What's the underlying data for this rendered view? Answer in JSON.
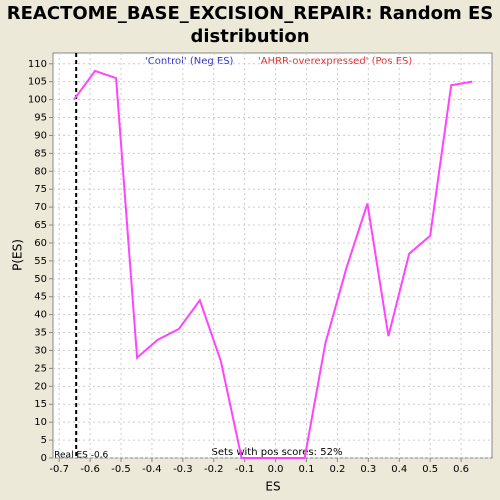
{
  "chart_data": {
    "type": "line",
    "title": "REACTOME_BASE_EXCISION_REPAIR: Random ES distribution",
    "xlabel": "ES",
    "ylabel": "P(ES)",
    "legend": [
      "'Control' (Neg ES)",
      "'AHRR-overexpressed' (Pos ES)"
    ],
    "legend_colors": [
      "#3333cc",
      "#dd3333"
    ],
    "annotation": "Sets with pos scores: 52%",
    "real_es": {
      "label": "Real ES -0.6",
      "x": -0.645
    },
    "x": [
      -0.652,
      -0.584,
      -0.516,
      -0.448,
      -0.381,
      -0.313,
      -0.245,
      -0.177,
      -0.11,
      -0.042,
      0.026,
      0.094,
      0.161,
      0.229,
      0.297,
      0.365,
      0.432,
      0.5,
      0.568,
      0.636
    ],
    "series": [
      {
        "name": "P(ES)",
        "color": "#ff44ff",
        "values": [
          100,
          108,
          106,
          28,
          33,
          36,
          44,
          27,
          0,
          0,
          0,
          0,
          32,
          53,
          71,
          34,
          57,
          62,
          104,
          105
        ]
      }
    ],
    "xlim": [
      -0.72,
      0.7
    ],
    "ylim": [
      0,
      113
    ],
    "xticks": [
      -0.7,
      -0.6,
      -0.5,
      -0.4,
      -0.3,
      -0.2,
      -0.1,
      {
        "value": 0,
        "label": "0.0"
      },
      0.1,
      0.2,
      0.3,
      0.4,
      0.5,
      0.6
    ],
    "yticks": [
      0,
      5,
      10,
      15,
      20,
      25,
      30,
      35,
      40,
      45,
      50,
      55,
      60,
      65,
      70,
      75,
      80,
      85,
      90,
      95,
      100,
      105,
      110
    ],
    "grid": true
  }
}
